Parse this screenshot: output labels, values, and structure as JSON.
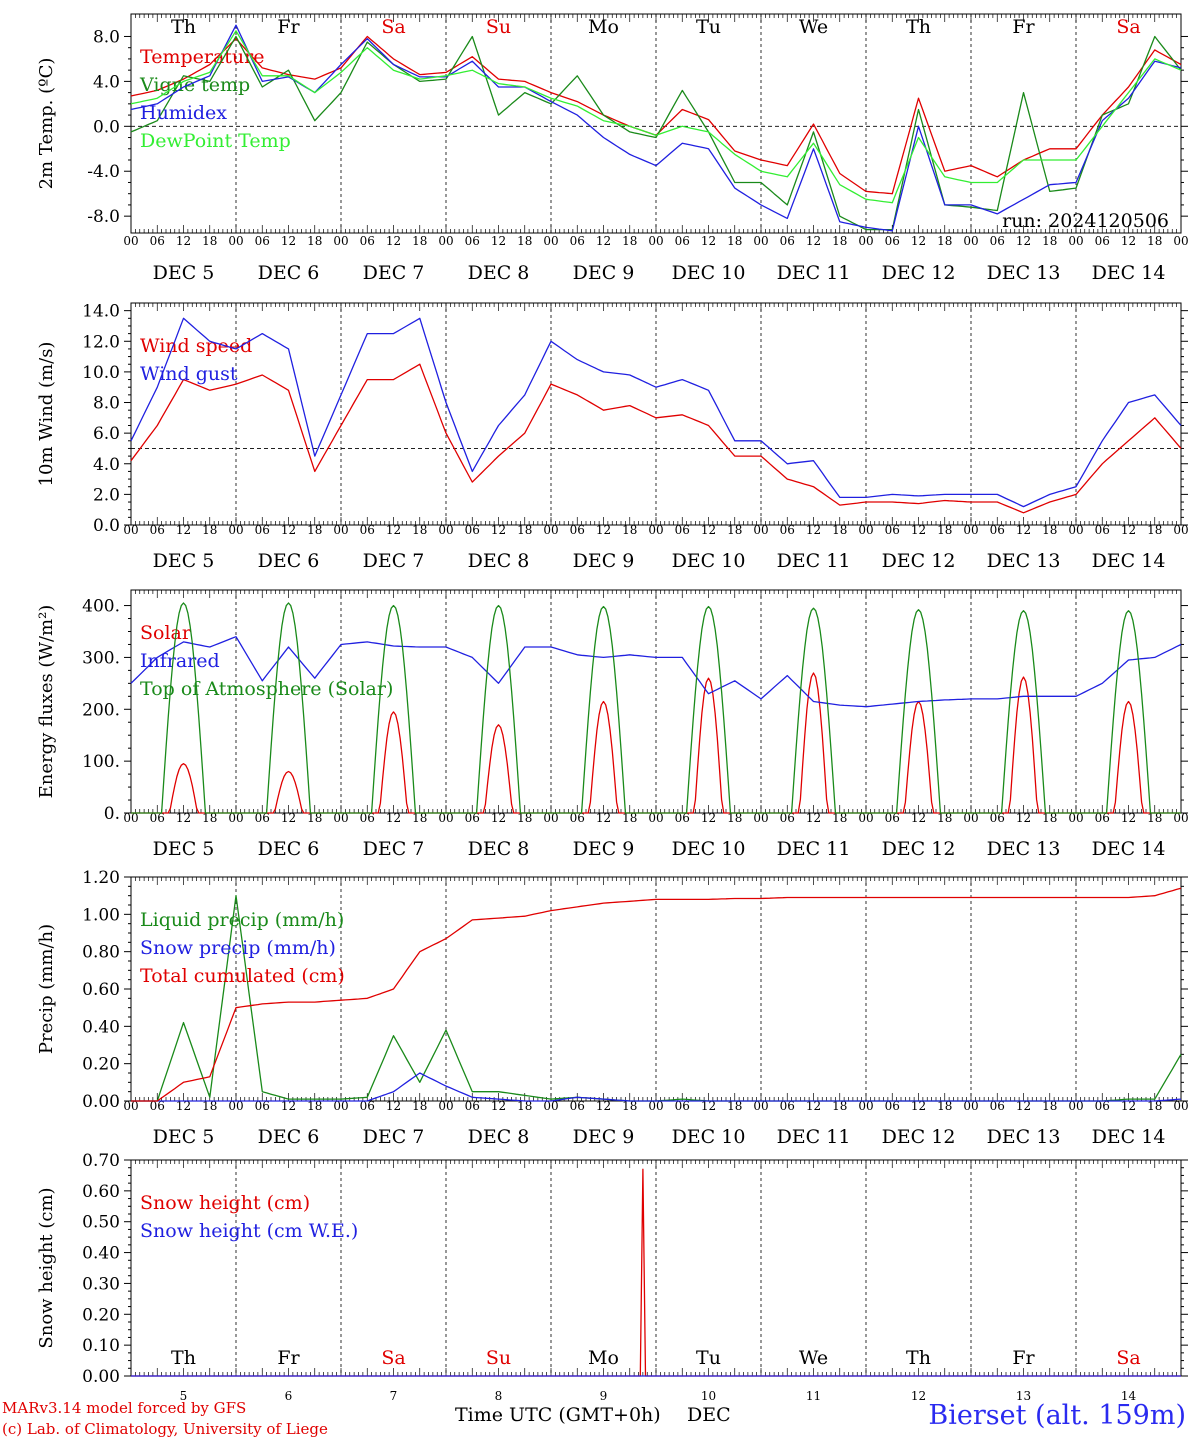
{
  "chart_data": [
    {
      "type": "line",
      "ylabel": "2m Temp. (ºC)",
      "ylim": [
        -9.5,
        10.0
      ],
      "yticks": [
        8.0,
        4.0,
        0.0,
        -4.0,
        -8.0
      ],
      "ytick_labels": [
        "8.0",
        "4.0",
        "0.0",
        "-4.0",
        "-8.0"
      ],
      "reference_line": 0.0,
      "legend_placement": "left",
      "annotation": "run: 2024120506",
      "weekday_labels": [
        "Th",
        "Fr",
        "Sa",
        "Su",
        "Mo",
        "Tu",
        "We",
        "Th",
        "Fr",
        "Sa"
      ],
      "weekday_colors": [
        "#000000",
        "#000000",
        "#e00000",
        "#e00000",
        "#000000",
        "#000000",
        "#000000",
        "#000000",
        "#000000",
        "#e00000"
      ],
      "date_labels": [
        "DEC  5",
        "DEC  6",
        "DEC  7",
        "DEC  8",
        "DEC  9",
        "DEC 10",
        "DEC 11",
        "DEC 12",
        "DEC 13",
        "DEC 14"
      ],
      "x": [
        0,
        6,
        12,
        18,
        24,
        30,
        36,
        42,
        48,
        54,
        60,
        66,
        72,
        78,
        84,
        90,
        96,
        102,
        108,
        114,
        120,
        126,
        132,
        138,
        144,
        150,
        156,
        162,
        168,
        174,
        180,
        186,
        192,
        198,
        204,
        210,
        216,
        222,
        228,
        234,
        240
      ],
      "series": [
        {
          "name": "Temperature",
          "color": "#e00000",
          "values": [
            2.7,
            3.2,
            4.2,
            5.5,
            7.8,
            5.2,
            4.6,
            4.2,
            5.2,
            8.0,
            6.0,
            4.6,
            4.8,
            6.2,
            4.2,
            4.0,
            3.0,
            2.2,
            1.0,
            0.0,
            -0.8,
            1.5,
            0.6,
            -2.2,
            -3.0,
            -3.5,
            0.2,
            -4.2,
            -5.8,
            -6.0,
            2.5,
            -4.0,
            -3.5,
            -4.5,
            -3.0,
            -2.0,
            -2.0,
            1.0,
            3.5,
            6.8,
            5.5
          ]
        },
        {
          "name": "Vigne temp",
          "color": "#1a8a1a",
          "values": [
            -0.5,
            0.5,
            4.5,
            4.0,
            8.0,
            3.5,
            5.0,
            0.5,
            3.0,
            7.5,
            5.5,
            4.0,
            4.2,
            8.0,
            1.0,
            3.0,
            2.0,
            4.5,
            1.0,
            -0.5,
            -1.0,
            3.2,
            -0.5,
            -5.0,
            -5.0,
            -7.0,
            -0.5,
            -8.0,
            -9.2,
            -9.2,
            1.5,
            -7.0,
            -7.2,
            -7.5,
            3.0,
            -5.8,
            -5.5,
            1.0,
            2.0,
            8.0,
            5.0
          ]
        },
        {
          "name": "Humidex",
          "color": "#2020e0",
          "values": [
            1.5,
            2.0,
            3.5,
            4.5,
            9.0,
            4.0,
            4.4,
            3.0,
            5.5,
            7.8,
            5.5,
            4.4,
            4.4,
            5.8,
            3.5,
            3.5,
            2.2,
            1.0,
            -1.0,
            -2.5,
            -3.5,
            -1.5,
            -2.0,
            -5.5,
            -7.0,
            -8.2,
            -2.0,
            -8.5,
            -9.0,
            -9.3,
            0.0,
            -7.0,
            -7.0,
            -7.8,
            -6.5,
            -5.2,
            -5.0,
            0.5,
            2.5,
            5.8,
            5.2
          ]
        },
        {
          "name": "DewPoint Temp",
          "color": "#33ee33",
          "values": [
            2.0,
            2.5,
            4.0,
            4.8,
            8.5,
            4.5,
            4.5,
            3.0,
            4.8,
            7.0,
            5.0,
            4.2,
            4.5,
            5.0,
            3.8,
            3.5,
            2.5,
            1.8,
            0.5,
            0.0,
            -0.8,
            0.0,
            -0.5,
            -2.5,
            -4.0,
            -4.5,
            -1.5,
            -5.2,
            -6.5,
            -6.8,
            -1.0,
            -4.5,
            -5.0,
            -5.0,
            -3.0,
            -3.0,
            -3.0,
            0.0,
            3.0,
            6.0,
            5.0
          ]
        }
      ]
    },
    {
      "type": "line",
      "ylabel": "10m Wind (m/s)",
      "ylim": [
        0.0,
        14.5
      ],
      "yticks": [
        14.0,
        12.0,
        10.0,
        8.0,
        6.0,
        4.0,
        2.0,
        0.0
      ],
      "ytick_labels": [
        "14.0",
        "12.0",
        "10.0",
        "8.0",
        "6.0",
        "4.0",
        "2.0",
        "0.0"
      ],
      "reference_line": 5.0,
      "legend_placement": "top-left",
      "date_labels": [
        "DEC  5",
        "DEC  6",
        "DEC  7",
        "DEC  8",
        "DEC  9",
        "DEC 10",
        "DEC 11",
        "DEC 12",
        "DEC 13",
        "DEC 14"
      ],
      "x": [
        0,
        6,
        12,
        18,
        24,
        30,
        36,
        42,
        48,
        54,
        60,
        66,
        72,
        78,
        84,
        90,
        96,
        102,
        108,
        114,
        120,
        126,
        132,
        138,
        144,
        150,
        156,
        162,
        168,
        174,
        180,
        186,
        192,
        198,
        204,
        210,
        216,
        222,
        228,
        234,
        240
      ],
      "series": [
        {
          "name": "Wind speed",
          "color": "#e00000",
          "values": [
            4.2,
            6.5,
            9.5,
            8.8,
            9.2,
            9.8,
            8.8,
            3.5,
            6.5,
            9.5,
            9.5,
            10.5,
            6.0,
            2.8,
            4.5,
            6.0,
            9.2,
            8.5,
            7.5,
            7.8,
            7.0,
            7.2,
            6.5,
            4.5,
            4.5,
            3.0,
            2.5,
            1.3,
            1.5,
            1.5,
            1.4,
            1.6,
            1.5,
            1.5,
            0.8,
            1.5,
            2.0,
            4.0,
            5.5,
            7.0,
            5.0
          ]
        },
        {
          "name": "Wind gust",
          "color": "#2020e0",
          "values": [
            5.5,
            9.0,
            13.5,
            12.0,
            11.5,
            12.5,
            11.5,
            4.5,
            8.5,
            12.5,
            12.5,
            13.5,
            8.0,
            3.5,
            6.5,
            8.5,
            12.0,
            10.8,
            10.0,
            9.8,
            9.0,
            9.5,
            8.8,
            5.5,
            5.5,
            4.0,
            4.2,
            1.8,
            1.8,
            2.0,
            1.9,
            2.0,
            2.0,
            2.0,
            1.2,
            2.0,
            2.5,
            5.5,
            8.0,
            8.5,
            6.5
          ]
        }
      ]
    },
    {
      "type": "line",
      "ylabel": "Energy fluxes (W/m²)",
      "ylim": [
        0,
        430
      ],
      "yticks": [
        400,
        300,
        200,
        100,
        0
      ],
      "ytick_labels": [
        "400.",
        "300.",
        "200.",
        "100.",
        "0."
      ],
      "legend_placement": "top-left",
      "date_labels": [
        "DEC  5",
        "DEC  6",
        "DEC  7",
        "DEC  8",
        "DEC  9",
        "DEC 10",
        "DEC 11",
        "DEC 12",
        "DEC 13",
        "DEC 14"
      ],
      "x": [
        0,
        6,
        12,
        18,
        24,
        30,
        36,
        42,
        48,
        54,
        60,
        66,
        72,
        78,
        84,
        90,
        96,
        102,
        108,
        114,
        120,
        126,
        132,
        138,
        144,
        150,
        156,
        162,
        168,
        174,
        180,
        186,
        192,
        198,
        204,
        210,
        216,
        222,
        228,
        234,
        240
      ],
      "series": [
        {
          "name": "Solar",
          "color": "#e00000",
          "daily_peaks": [
            95,
            80,
            195,
            170,
            215,
            260,
            270,
            215,
            262,
            215
          ],
          "peak_hour": 12
        },
        {
          "name": "Infrared",
          "color": "#2020e0",
          "values": [
            250,
            300,
            330,
            320,
            340,
            255,
            320,
            260,
            325,
            330,
            322,
            320,
            320,
            300,
            250,
            320,
            320,
            305,
            300,
            305,
            300,
            300,
            230,
            255,
            220,
            265,
            215,
            208,
            205,
            210,
            215,
            218,
            220,
            220,
            225,
            225,
            225,
            250,
            295,
            300,
            325
          ]
        },
        {
          "name": "Top of Atmosphere (Solar)",
          "color": "#1a8a1a",
          "daily_peaks": [
            405,
            405,
            400,
            400,
            398,
            398,
            395,
            392,
            390,
            390
          ],
          "peak_hour": 12
        }
      ]
    },
    {
      "type": "line",
      "ylabel": "Precip (mm/h)",
      "ylim": [
        0.0,
        1.2
      ],
      "yticks": [
        1.2,
        1.0,
        0.8,
        0.6,
        0.4,
        0.2,
        0.0
      ],
      "ytick_labels": [
        "1.20",
        "1.00",
        "0.80",
        "0.60",
        "0.40",
        "0.20",
        "0.00"
      ],
      "legend_placement": "top-left",
      "date_labels": [
        "DEC  5",
        "DEC  6",
        "DEC  7",
        "DEC  8",
        "DEC  9",
        "DEC 10",
        "DEC 11",
        "DEC 12",
        "DEC 13",
        "DEC 14"
      ],
      "x": [
        0,
        6,
        12,
        18,
        24,
        30,
        36,
        42,
        48,
        54,
        60,
        66,
        72,
        78,
        84,
        90,
        96,
        102,
        108,
        114,
        120,
        126,
        132,
        138,
        144,
        150,
        156,
        162,
        168,
        174,
        180,
        186,
        192,
        198,
        204,
        210,
        216,
        222,
        228,
        234,
        240
      ],
      "series": [
        {
          "name": "Liquid precip (mm/h)",
          "color": "#1a8a1a",
          "values": [
            0,
            0,
            0.42,
            0.02,
            1.1,
            0.05,
            0.01,
            0.01,
            0.01,
            0.02,
            0.35,
            0.1,
            0.38,
            0.05,
            0.05,
            0.03,
            0.01,
            0.02,
            0.01,
            0,
            0,
            0.01,
            0,
            0,
            0,
            0,
            0,
            0,
            0,
            0,
            0,
            0,
            0,
            0,
            0,
            0,
            0,
            0,
            0.01,
            0.01,
            0.25
          ]
        },
        {
          "name": "Snow precip (mm/h)",
          "color": "#2020e0",
          "values": [
            0,
            0,
            0,
            0,
            0,
            0,
            0,
            0,
            0,
            0,
            0.05,
            0.15,
            0.08,
            0.02,
            0.01,
            0,
            0,
            0.02,
            0.01,
            0,
            0,
            0,
            0,
            0,
            0,
            0,
            0,
            0,
            0,
            0,
            0,
            0,
            0,
            0,
            0,
            0,
            0,
            0,
            0,
            0,
            0.01
          ]
        },
        {
          "name": "Total cumulated (cm)",
          "color": "#e00000",
          "values": [
            0,
            0,
            0.1,
            0.13,
            0.5,
            0.52,
            0.53,
            0.53,
            0.54,
            0.55,
            0.6,
            0.8,
            0.87,
            0.97,
            0.98,
            0.99,
            1.02,
            1.04,
            1.06,
            1.07,
            1.08,
            1.08,
            1.08,
            1.085,
            1.085,
            1.09,
            1.09,
            1.09,
            1.09,
            1.09,
            1.09,
            1.09,
            1.09,
            1.09,
            1.09,
            1.09,
            1.09,
            1.09,
            1.09,
            1.1,
            1.14
          ]
        }
      ]
    },
    {
      "type": "line",
      "ylabel": "Snow height (cm)",
      "ylim": [
        0.0,
        0.7
      ],
      "yticks": [
        0.7,
        0.6,
        0.5,
        0.4,
        0.3,
        0.2,
        0.1,
        0.0
      ],
      "ytick_labels": [
        "0.70",
        "0.60",
        "0.50",
        "0.40",
        "0.30",
        "0.20",
        "0.10",
        "0.00"
      ],
      "legend_placement": "top-left",
      "weekday_labels": [
        "Th",
        "Fr",
        "Sa",
        "Su",
        "Mo",
        "Tu",
        "We",
        "Th",
        "Fr",
        "Sa"
      ],
      "weekday_colors": [
        "#000000",
        "#000000",
        "#e00000",
        "#e00000",
        "#000000",
        "#000000",
        "#000000",
        "#000000",
        "#000000",
        "#e00000"
      ],
      "day_numbers": [
        "5",
        "6",
        "7",
        "8",
        "9",
        "10",
        "11",
        "12",
        "13",
        "14"
      ],
      "xlabel": "Time UTC (GMT+0h)",
      "xlabel_suffix": "DEC",
      "series": [
        {
          "name": "Snow height (cm)",
          "color": "#e00000",
          "spike_hour": 117,
          "spike_value": 0.67
        },
        {
          "name": "Snow height (cm W.E.)",
          "color": "#2020e0",
          "values": [
            0,
            0
          ]
        }
      ]
    }
  ],
  "hour_tick_labels": [
    "00",
    "06",
    "12",
    "18"
  ],
  "footer": {
    "model_line": "MARv3.14 model forced by GFS",
    "credit_line": "(c) Lab. of Climatology, University of Liege",
    "station": "Bierset (alt. 159m)"
  }
}
